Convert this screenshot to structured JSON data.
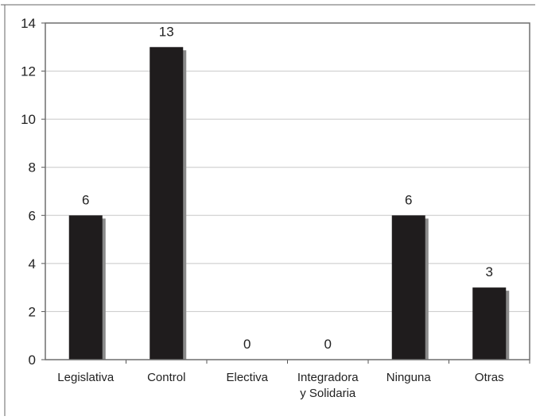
{
  "chart_data": {
    "type": "bar",
    "categories": [
      [
        "Legislativa"
      ],
      [
        "Control"
      ],
      [
        "Electiva"
      ],
      [
        "Integradora",
        "y Solidaria"
      ],
      [
        "Ninguna"
      ],
      [
        "Otras"
      ]
    ],
    "values": [
      6,
      13,
      0,
      0,
      6,
      3
    ],
    "data_labels": [
      "6",
      "13",
      "0",
      "0",
      "6",
      "3"
    ],
    "y_ticks": [
      "0",
      "2",
      "4",
      "6",
      "8",
      "10",
      "12",
      "14"
    ],
    "ylim": [
      0,
      14
    ],
    "grid": true,
    "legend": "none",
    "colors": {
      "bar": "#1f1c1d",
      "shadow": "#8a8a8a",
      "grid": "#c8c8c8",
      "axis": "#555555"
    }
  }
}
